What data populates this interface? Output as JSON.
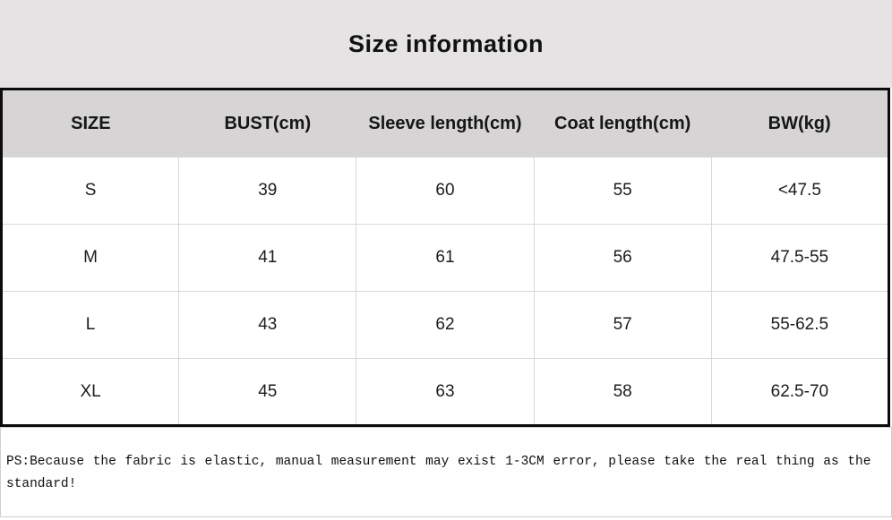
{
  "title": "Size information",
  "table": {
    "headers": [
      "SIZE",
      "BUST(cm)",
      "Sleeve length(cm)",
      "Coat length(cm)",
      "BW(kg)"
    ],
    "rows": [
      [
        "S",
        "39",
        "60",
        "55",
        "<47.5"
      ],
      [
        "M",
        "41",
        "61",
        "56",
        "47.5-55"
      ],
      [
        "L",
        "43",
        "62",
        "57",
        "55-62.5"
      ],
      [
        "XL",
        "45",
        "63",
        "58",
        "62.5-70"
      ]
    ]
  },
  "note": {
    "text": "PS:Because the fabric is elastic, manual measurement may exist 1-3CM error, please take the real thing as the standard!"
  },
  "colors": {
    "title_bg": "#e5e3e3",
    "header_bg": "#d6d4d4",
    "grid_line": "#d9d9d9",
    "border_strong": "#0c0c0c",
    "text": "#141414"
  }
}
